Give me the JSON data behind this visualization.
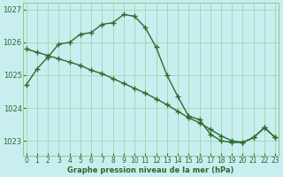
{
  "series1": {
    "x": [
      0,
      1,
      2,
      3,
      4,
      5,
      6,
      7,
      8,
      9,
      10,
      11,
      12,
      13,
      14,
      15,
      16,
      17,
      18,
      19,
      20,
      21,
      22,
      23
    ],
    "y": [
      1024.7,
      1025.2,
      1025.55,
      1025.95,
      1026.0,
      1026.25,
      1026.3,
      1026.55,
      1026.6,
      1026.85,
      1026.8,
      1026.45,
      1025.85,
      1025.0,
      1024.35,
      1023.75,
      1023.65,
      1023.2,
      1023.0,
      1022.95,
      1022.95,
      1023.1,
      1023.4,
      1023.1
    ]
  },
  "series2": {
    "x": [
      0,
      1,
      2,
      3,
      4,
      5,
      6,
      7,
      8,
      9,
      10,
      11,
      12,
      13,
      14,
      15,
      16,
      17,
      18,
      19,
      20,
      21,
      22,
      23
    ],
    "y": [
      1025.8,
      1025.7,
      1025.6,
      1025.5,
      1025.4,
      1025.3,
      1025.15,
      1025.05,
      1024.9,
      1024.75,
      1024.6,
      1024.45,
      1024.28,
      1024.1,
      1023.9,
      1023.7,
      1023.55,
      1023.35,
      1023.15,
      1023.0,
      1022.95,
      1023.1,
      1023.4,
      1023.1
    ]
  },
  "line_color": "#2d6a2d",
  "bg_color": "#c8eef0",
  "grid_color": "#88cc88",
  "ylim": [
    1022.55,
    1027.2
  ],
  "yticks": [
    1023,
    1024,
    1025,
    1026,
    1027
  ],
  "xlim": [
    -0.3,
    23.3
  ],
  "xticks": [
    0,
    1,
    2,
    3,
    4,
    5,
    6,
    7,
    8,
    9,
    10,
    11,
    12,
    13,
    14,
    15,
    16,
    17,
    18,
    19,
    20,
    21,
    22,
    23
  ],
  "xlabel": "Graphe pression niveau de la mer (hPa)",
  "marker": "+",
  "markersize": 4,
  "linewidth": 1.0,
  "label_color": "#2d6a2d"
}
